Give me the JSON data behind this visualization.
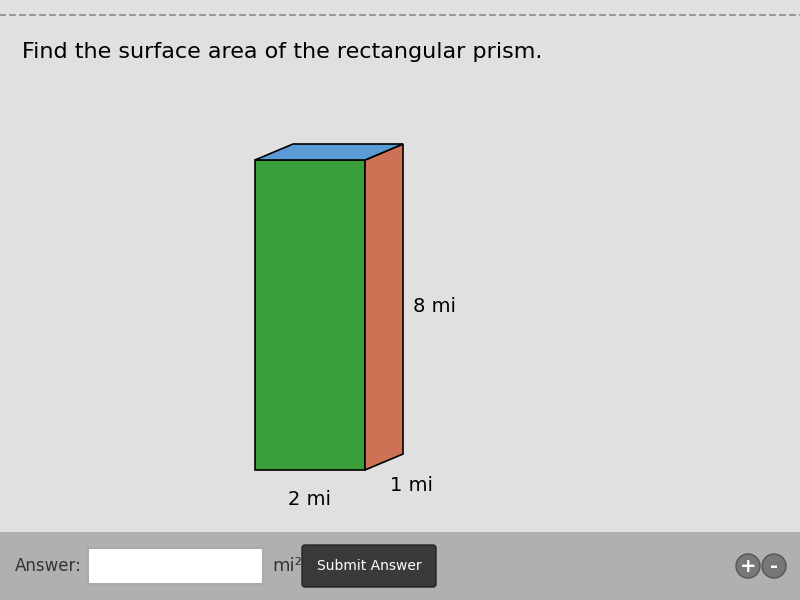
{
  "title": "Find the surface area of the rectangular prism.",
  "title_fontsize": 16,
  "background_color": "#e0e0e0",
  "prism": {
    "front_color": "#3a9e3a",
    "side_color": "#cd7255",
    "top_color": "#5b9bd5"
  },
  "labels": {
    "height": "8 mi",
    "width": "2 mi",
    "depth": "1 mi"
  },
  "label_fontsize": 14,
  "answer_label": "Answer:",
  "unit_label": "mi²",
  "submit_label": "Submit Answer",
  "dashed_line_color": "#888888"
}
